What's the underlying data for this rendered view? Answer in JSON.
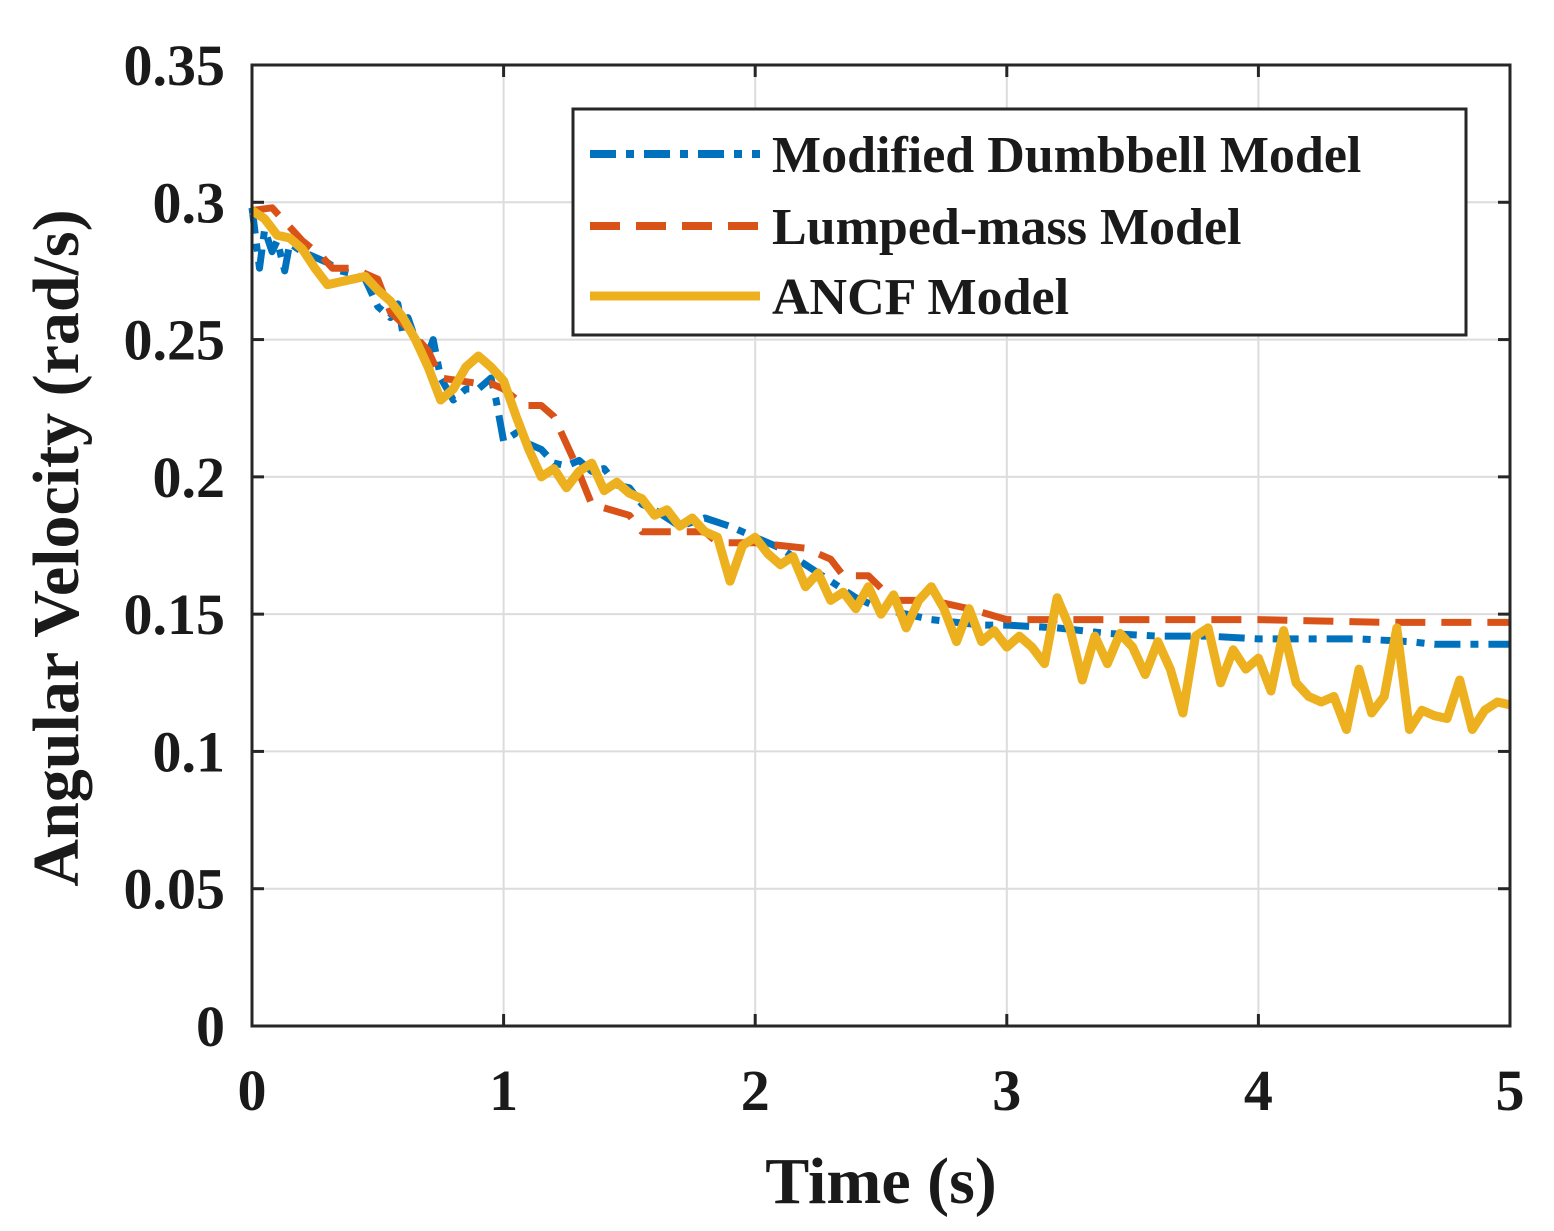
{
  "chart_data": {
    "type": "line",
    "title": "",
    "xlabel": "Time (s)",
    "ylabel": "Angular Velocity (rad/s)",
    "xlim": [
      0,
      5
    ],
    "ylim": [
      0,
      0.35
    ],
    "xticks": [
      0,
      1,
      2,
      3,
      4,
      5
    ],
    "xtick_labels": [
      "0",
      "1",
      "2",
      "3",
      "4",
      "5"
    ],
    "yticks": [
      0,
      0.05,
      0.1,
      0.15,
      0.2,
      0.25,
      0.3,
      0.35
    ],
    "ytick_labels": [
      "0",
      "0.05",
      "0.1",
      "0.15",
      "0.2",
      "0.25",
      "0.3",
      "0.35"
    ],
    "grid": true,
    "legend_position": "top-right",
    "series": [
      {
        "name": "Modified Dumbbell Model",
        "color": "#0072BD",
        "style": "dash-dot",
        "x": [
          0,
          0.03,
          0.05,
          0.08,
          0.1,
          0.13,
          0.15,
          0.2,
          0.25,
          0.3,
          0.35,
          0.4,
          0.45,
          0.5,
          0.55,
          0.58,
          0.6,
          0.62,
          0.65,
          0.68,
          0.7,
          0.72,
          0.75,
          0.8,
          0.85,
          0.9,
          0.95,
          0.97,
          1.0,
          1.05,
          1.1,
          1.15,
          1.2,
          1.25,
          1.3,
          1.35,
          1.4,
          1.45,
          1.5,
          1.55,
          1.6,
          1.7,
          1.8,
          1.9,
          2.0,
          2.1,
          2.2,
          2.3,
          2.4,
          2.5,
          2.6,
          2.7,
          2.8,
          2.9,
          3.0,
          3.2,
          3.4,
          3.6,
          3.8,
          4.0,
          4.2,
          4.4,
          4.6,
          4.7,
          4.8,
          5.0
        ],
        "y": [
          0.298,
          0.276,
          0.29,
          0.282,
          0.286,
          0.275,
          0.285,
          0.282,
          0.28,
          0.278,
          0.275,
          0.274,
          0.272,
          0.262,
          0.258,
          0.263,
          0.252,
          0.258,
          0.25,
          0.248,
          0.245,
          0.25,
          0.236,
          0.228,
          0.232,
          0.232,
          0.236,
          0.228,
          0.213,
          0.216,
          0.212,
          0.21,
          0.205,
          0.204,
          0.206,
          0.202,
          0.203,
          0.197,
          0.196,
          0.19,
          0.188,
          0.182,
          0.185,
          0.182,
          0.178,
          0.174,
          0.168,
          0.162,
          0.156,
          0.152,
          0.15,
          0.148,
          0.147,
          0.146,
          0.146,
          0.145,
          0.143,
          0.142,
          0.142,
          0.141,
          0.141,
          0.141,
          0.14,
          0.139,
          0.139,
          0.139
        ]
      },
      {
        "name": "Lumped-mass Model",
        "color": "#D95319",
        "style": "dashed",
        "x": [
          0,
          0.08,
          0.16,
          0.2,
          0.28,
          0.32,
          0.4,
          0.5,
          0.55,
          0.62,
          0.7,
          0.75,
          0.9,
          0.95,
          1.0,
          1.08,
          1.15,
          1.2,
          1.28,
          1.35,
          1.5,
          1.55,
          1.8,
          1.85,
          2.0,
          2.2,
          2.3,
          2.35,
          2.45,
          2.55,
          2.7,
          2.85,
          3.0,
          3.5,
          4.0,
          4.5,
          5.0
        ],
        "y": [
          0.297,
          0.298,
          0.29,
          0.286,
          0.28,
          0.276,
          0.276,
          0.272,
          0.26,
          0.254,
          0.246,
          0.236,
          0.234,
          0.234,
          0.232,
          0.226,
          0.226,
          0.222,
          0.206,
          0.19,
          0.186,
          0.18,
          0.18,
          0.176,
          0.176,
          0.174,
          0.17,
          0.164,
          0.164,
          0.155,
          0.155,
          0.152,
          0.148,
          0.148,
          0.148,
          0.147,
          0.147
        ]
      },
      {
        "name": "ANCF Model",
        "color": "#EDB120",
        "style": "solid",
        "x": [
          0,
          0.05,
          0.1,
          0.15,
          0.2,
          0.25,
          0.3,
          0.35,
          0.4,
          0.45,
          0.5,
          0.55,
          0.6,
          0.65,
          0.7,
          0.75,
          0.8,
          0.85,
          0.9,
          0.95,
          1.0,
          1.05,
          1.1,
          1.15,
          1.2,
          1.25,
          1.3,
          1.35,
          1.4,
          1.45,
          1.5,
          1.55,
          1.6,
          1.65,
          1.7,
          1.75,
          1.8,
          1.85,
          1.9,
          1.95,
          2.0,
          2.05,
          2.1,
          2.15,
          2.2,
          2.25,
          2.3,
          2.35,
          2.4,
          2.45,
          2.5,
          2.55,
          2.6,
          2.65,
          2.7,
          2.75,
          2.8,
          2.85,
          2.9,
          2.95,
          3.0,
          3.05,
          3.1,
          3.15,
          3.2,
          3.25,
          3.3,
          3.35,
          3.4,
          3.45,
          3.5,
          3.55,
          3.6,
          3.65,
          3.7,
          3.75,
          3.8,
          3.85,
          3.9,
          3.95,
          4.0,
          4.05,
          4.1,
          4.15,
          4.2,
          4.25,
          4.3,
          4.35,
          4.4,
          4.45,
          4.5,
          4.55,
          4.6,
          4.65,
          4.7,
          4.75,
          4.8,
          4.85,
          4.9,
          4.95,
          5.0
        ],
        "y": [
          0.297,
          0.294,
          0.288,
          0.287,
          0.283,
          0.276,
          0.27,
          0.271,
          0.272,
          0.273,
          0.268,
          0.264,
          0.258,
          0.25,
          0.24,
          0.228,
          0.232,
          0.24,
          0.244,
          0.24,
          0.235,
          0.222,
          0.21,
          0.2,
          0.203,
          0.196,
          0.202,
          0.205,
          0.195,
          0.198,
          0.194,
          0.192,
          0.186,
          0.188,
          0.182,
          0.185,
          0.18,
          0.178,
          0.162,
          0.175,
          0.178,
          0.172,
          0.168,
          0.171,
          0.16,
          0.165,
          0.155,
          0.158,
          0.152,
          0.16,
          0.15,
          0.157,
          0.145,
          0.155,
          0.16,
          0.152,
          0.14,
          0.152,
          0.14,
          0.144,
          0.138,
          0.142,
          0.138,
          0.132,
          0.156,
          0.145,
          0.126,
          0.142,
          0.132,
          0.143,
          0.138,
          0.128,
          0.14,
          0.13,
          0.114,
          0.142,
          0.145,
          0.125,
          0.137,
          0.13,
          0.134,
          0.122,
          0.144,
          0.125,
          0.12,
          0.118,
          0.12,
          0.108,
          0.13,
          0.114,
          0.12,
          0.145,
          0.108,
          0.115,
          0.113,
          0.112,
          0.126,
          0.108,
          0.115,
          0.118,
          0.117
        ]
      }
    ]
  }
}
